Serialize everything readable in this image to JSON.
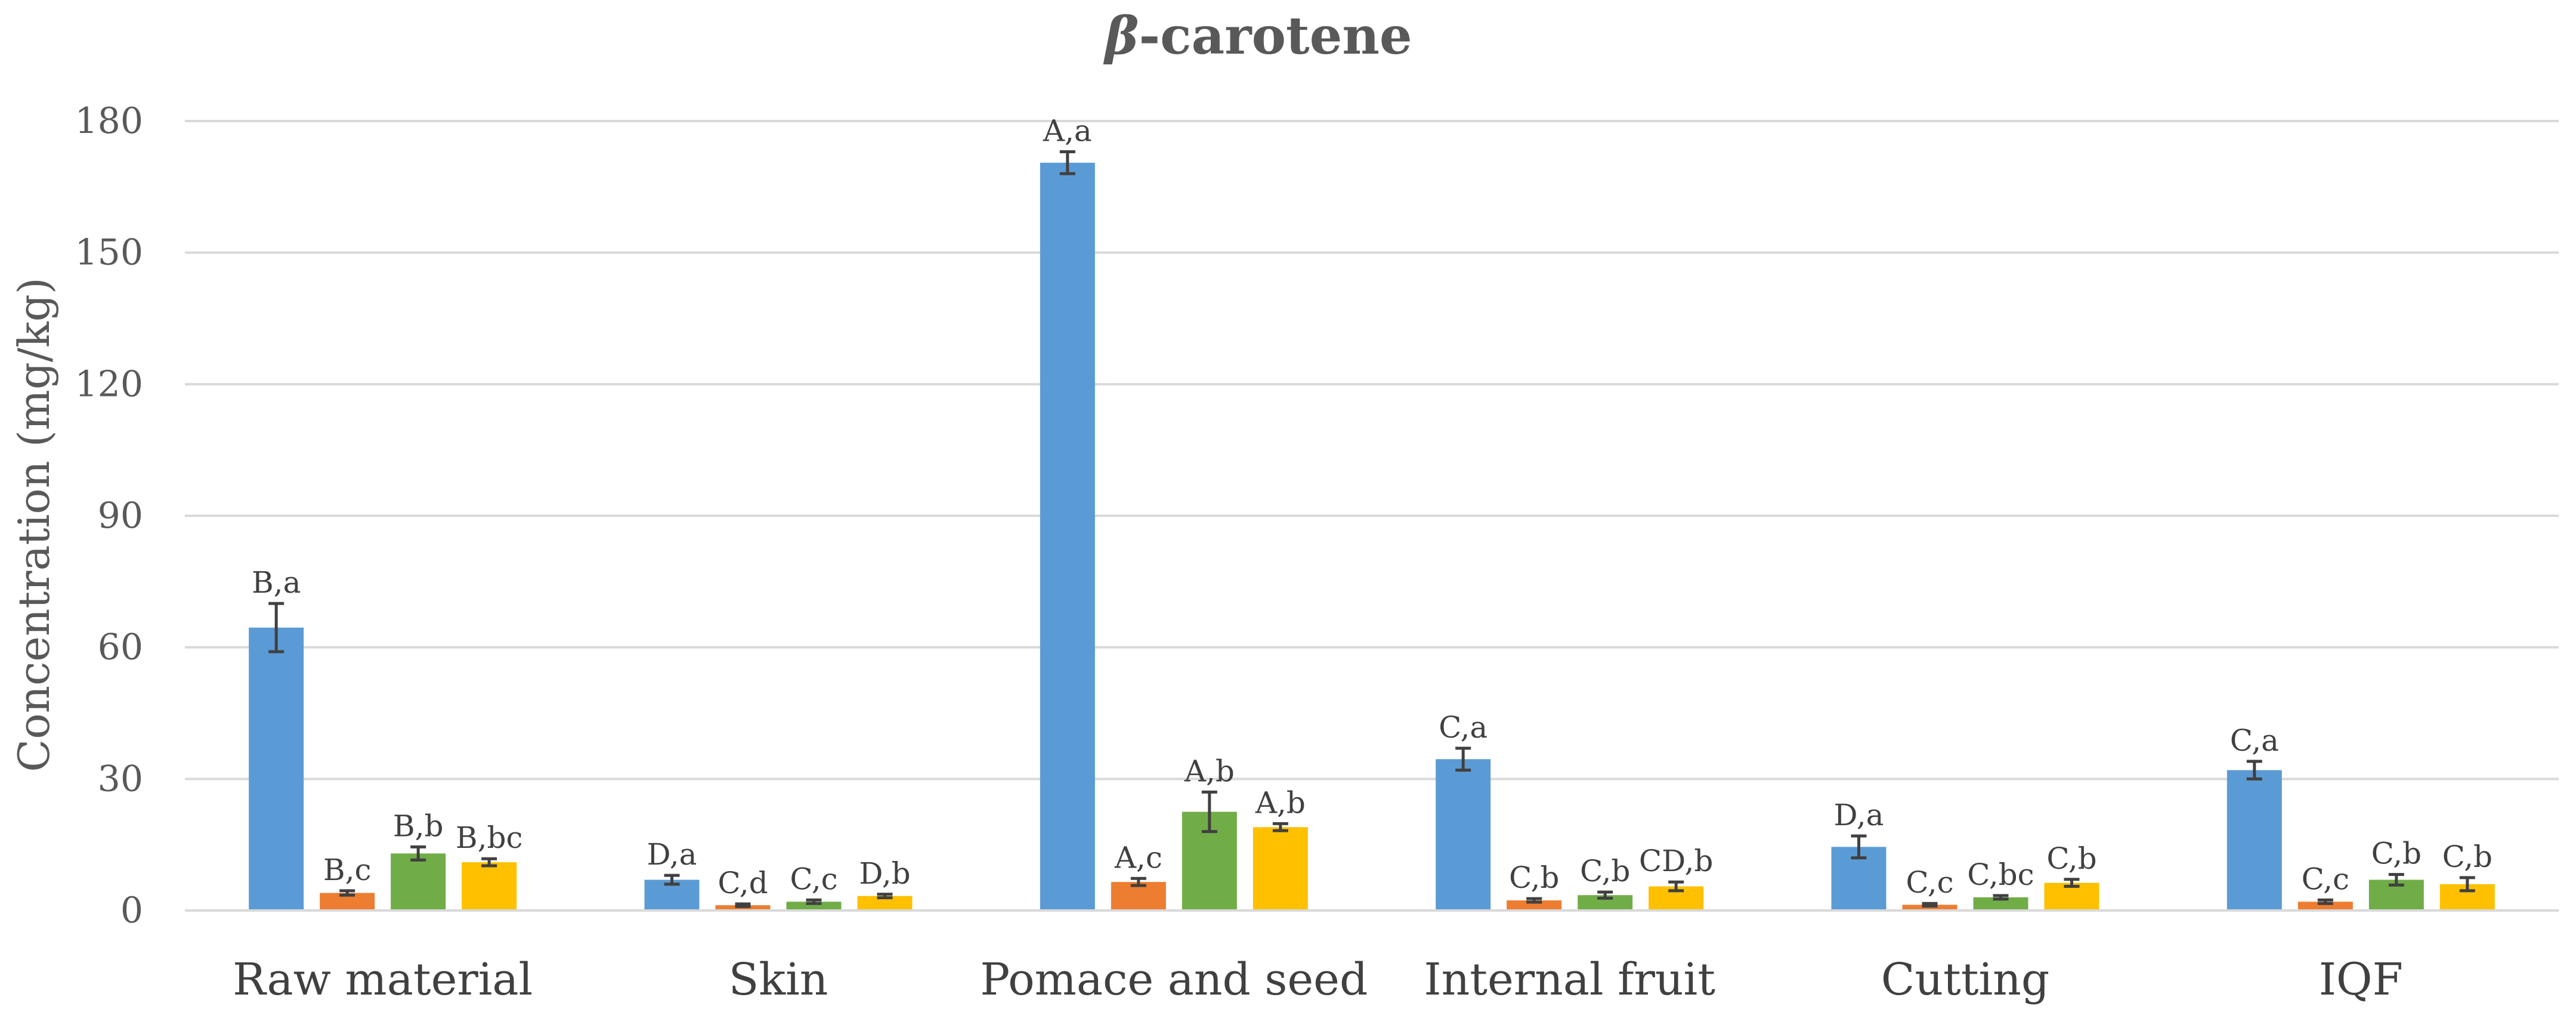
{
  "chart_data": {
    "type": "bar",
    "title_symbol": "β",
    "title_rest": "-carotene",
    "ylabel": "Concentration (mg/kg)",
    "xlabel": "",
    "ylim": [
      0,
      180
    ],
    "yticks": [
      0,
      30,
      60,
      90,
      120,
      150,
      180
    ],
    "grid": true,
    "legend": "none",
    "categories": [
      "Raw material",
      "Skin",
      "Pomace and seed",
      "Internal fruit",
      "Cutting",
      "IQF"
    ],
    "series": [
      {
        "color": "#5b9bd5",
        "values": [
          64.5,
          7.0,
          170.5,
          34.5,
          14.5,
          32.0
        ],
        "errors": [
          5.5,
          1.0,
          2.5,
          2.5,
          2.5,
          2.0
        ],
        "labels": [
          "B,a",
          "D,a",
          "A,a",
          "C,a",
          "D,a",
          "C,a"
        ]
      },
      {
        "color": "#ed7d31",
        "values": [
          4.0,
          1.2,
          6.5,
          2.3,
          1.3,
          2.0
        ],
        "errors": [
          0.5,
          0.3,
          0.8,
          0.4,
          0.3,
          0.4
        ],
        "labels": [
          "B,c",
          "C,d",
          "A,c",
          "C,b",
          "C,c",
          "C,c"
        ]
      },
      {
        "color": "#70ad47",
        "values": [
          13.0,
          2.0,
          22.5,
          3.5,
          3.0,
          7.0
        ],
        "errors": [
          1.5,
          0.4,
          4.5,
          0.7,
          0.4,
          1.2
        ],
        "labels": [
          "B,b",
          "C,c",
          "A,b",
          "C,b",
          "C,bc",
          "C,b"
        ]
      },
      {
        "color": "#ffc000",
        "values": [
          11.0,
          3.3,
          19.0,
          5.5,
          6.3,
          6.0
        ],
        "errors": [
          0.8,
          0.4,
          0.8,
          1.0,
          0.8,
          1.5
        ],
        "labels": [
          "B,bc",
          "D,b",
          "A,b",
          "CD,b",
          "C,b",
          "C,b"
        ]
      }
    ]
  }
}
